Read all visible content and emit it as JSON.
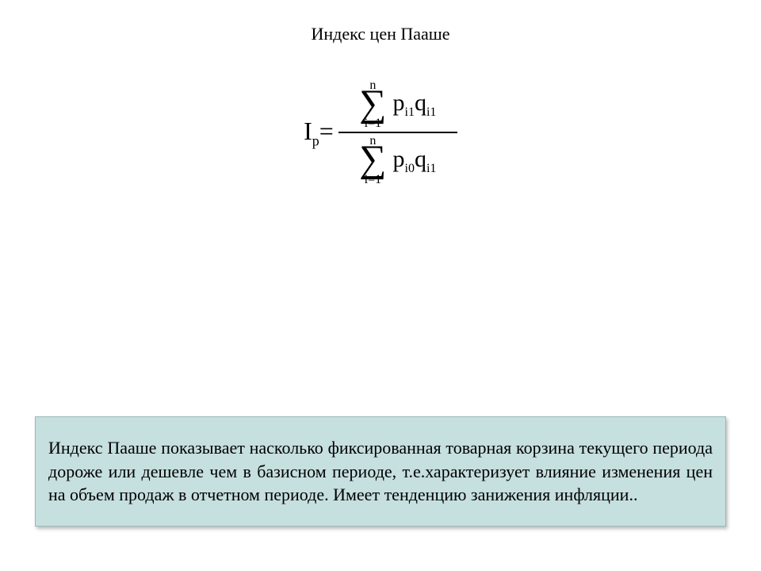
{
  "title": "Индекс цен Пааше",
  "formula": {
    "lhs_symbol": "I",
    "lhs_sub": "p",
    "eq": "=",
    "sum_upper": "n",
    "sum_lower": "i=1",
    "num_p": "p",
    "num_p_sub": "i1",
    "num_q": "q",
    "num_q_sub": "i1",
    "den_p": "p",
    "den_p_sub": "i0",
    "den_q": "q",
    "den_q_sub": "i1"
  },
  "description": "Индекс Пааше показывает  насколько фиксированная товарная корзина текущего периода дороже или дешевле чем в базисном периоде, т.е.характеризует влияние изменения цен на объем продаж в отчетном периоде. Имеет тенденцию занижения инфляции..",
  "colors": {
    "page_bg": "#ffffff",
    "text": "#000000",
    "box_bg": "#c6dfdf",
    "box_border": "#9ab8b8"
  }
}
